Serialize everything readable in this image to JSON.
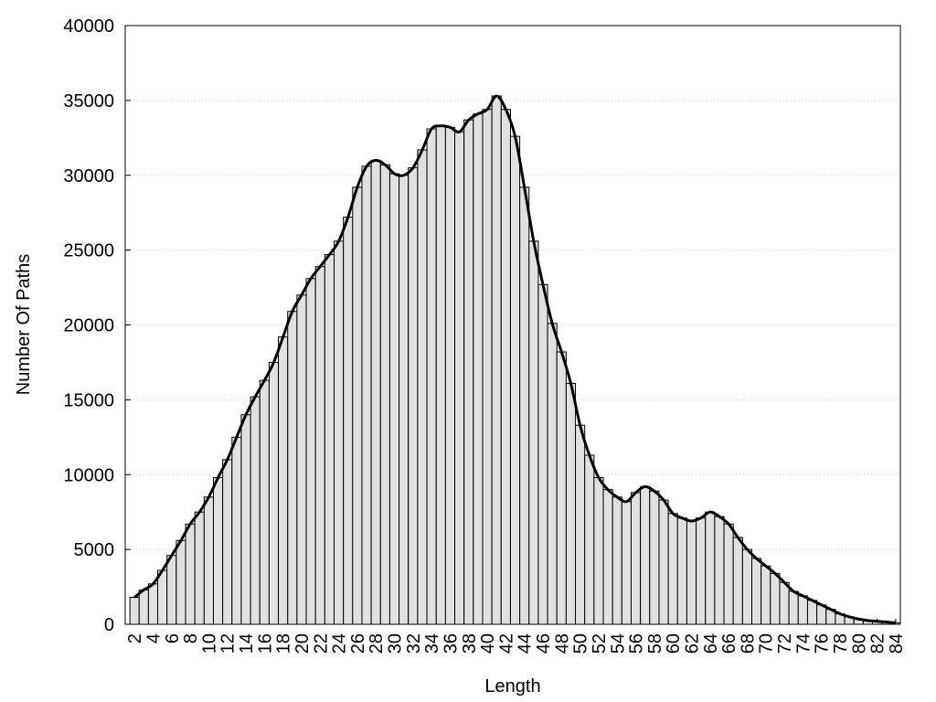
{
  "chart_data": {
    "type": "bar",
    "x_label": "Length",
    "y_label": "Number Of Paths",
    "x": [
      2,
      3,
      4,
      5,
      6,
      7,
      8,
      9,
      10,
      11,
      12,
      13,
      14,
      15,
      16,
      17,
      18,
      19,
      20,
      21,
      22,
      23,
      24,
      25,
      26,
      27,
      28,
      29,
      30,
      31,
      32,
      33,
      34,
      35,
      36,
      37,
      38,
      39,
      40,
      41,
      42,
      43,
      44,
      45,
      46,
      47,
      48,
      49,
      50,
      51,
      52,
      53,
      54,
      55,
      56,
      57,
      58,
      59,
      60,
      61,
      62,
      63,
      64,
      65,
      66,
      67,
      68,
      69,
      70,
      71,
      72,
      73,
      74,
      75,
      76,
      77,
      78,
      79,
      80,
      81,
      82,
      83,
      84
    ],
    "values": [
      1800,
      2300,
      2700,
      3600,
      4600,
      5600,
      6700,
      7500,
      8500,
      9800,
      11000,
      12500,
      14000,
      15200,
      16300,
      17500,
      19200,
      20900,
      22000,
      23100,
      23900,
      24700,
      25600,
      27200,
      29200,
      30600,
      31000,
      30700,
      30100,
      30000,
      30500,
      31700,
      33100,
      33300,
      33200,
      32900,
      33700,
      34100,
      34400,
      35300,
      34400,
      32600,
      29200,
      25600,
      22700,
      20100,
      18200,
      16100,
      13300,
      11300,
      9800,
      9000,
      8500,
      8200,
      8800,
      9200,
      8900,
      8300,
      7400,
      7100,
      6900,
      7100,
      7500,
      7200,
      6700,
      5800,
      5000,
      4400,
      3900,
      3400,
      2800,
      2200,
      1900,
      1600,
      1300,
      1000,
      700,
      500,
      350,
      250,
      200,
      150,
      100
    ],
    "color": "#e0e0e0",
    "line_color": "#000000",
    "smooth_line": true,
    "xlim": [
      1,
      84.5
    ],
    "xticks": [
      2,
      4,
      6,
      8,
      10,
      12,
      14,
      16,
      18,
      20,
      22,
      24,
      26,
      28,
      30,
      32,
      34,
      36,
      38,
      40,
      42,
      44,
      46,
      48,
      50,
      52,
      54,
      56,
      58,
      60,
      62,
      64,
      66,
      68,
      70,
      72,
      74,
      76,
      78,
      80,
      82,
      84
    ],
    "ylim": [
      0,
      40000
    ],
    "yticks": [
      0,
      5000,
      10000,
      15000,
      20000,
      25000,
      30000,
      35000,
      40000
    ],
    "grid": true
  }
}
